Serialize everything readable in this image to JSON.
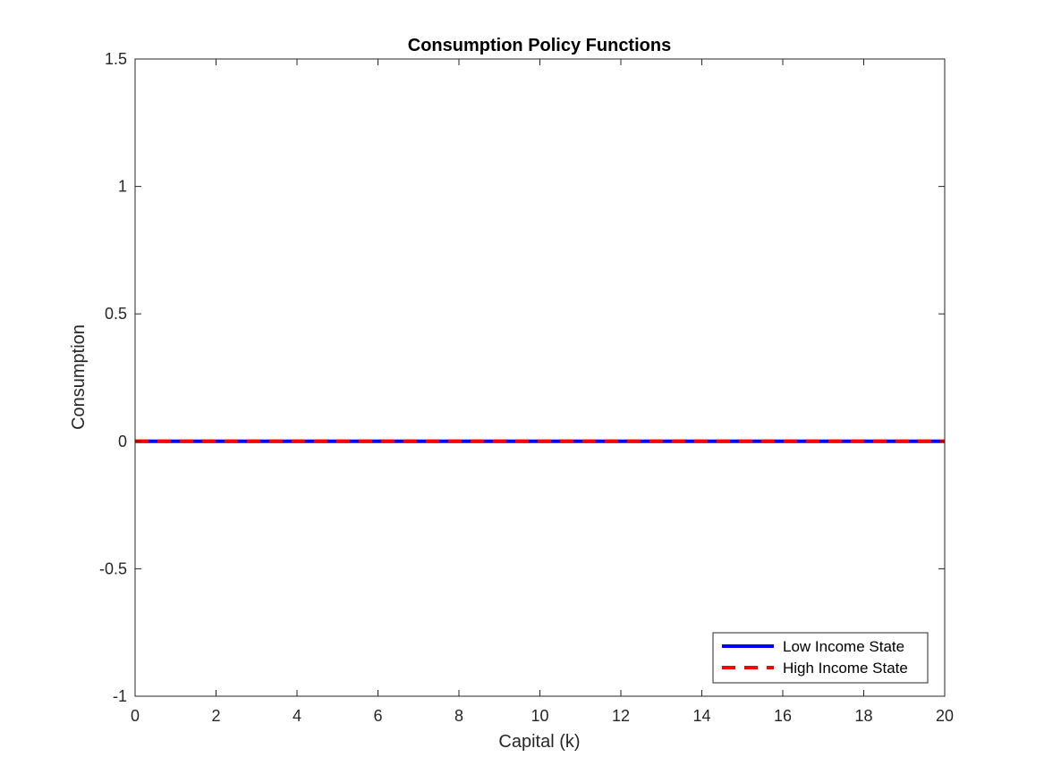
{
  "chart_data": {
    "type": "line",
    "title": "Consumption Policy Functions",
    "xlabel": "Capital (k)",
    "ylabel": "Consumption",
    "xlim": [
      0,
      20
    ],
    "ylim": [
      -1,
      1.5
    ],
    "xticks": [
      0,
      2,
      4,
      6,
      8,
      10,
      12,
      14,
      16,
      18,
      20
    ],
    "yticks": [
      -1,
      -0.5,
      0,
      0.5,
      1,
      1.5
    ],
    "xtick_labels": [
      "0",
      "2",
      "4",
      "6",
      "8",
      "10",
      "12",
      "14",
      "16",
      "18",
      "20"
    ],
    "ytick_labels": [
      "-1",
      "-0.5",
      "0",
      "0.5",
      "1",
      "1.5"
    ],
    "grid": false,
    "legend_position": "bottom-right",
    "series": [
      {
        "name": "Low Income State",
        "color": "#0000ff",
        "style": "solid",
        "x": [
          0,
          20
        ],
        "y": [
          0,
          0
        ]
      },
      {
        "name": "High Income State",
        "color": "#ff0000",
        "style": "dashed",
        "x": [
          0,
          20
        ],
        "y": [
          0,
          0
        ]
      }
    ]
  }
}
